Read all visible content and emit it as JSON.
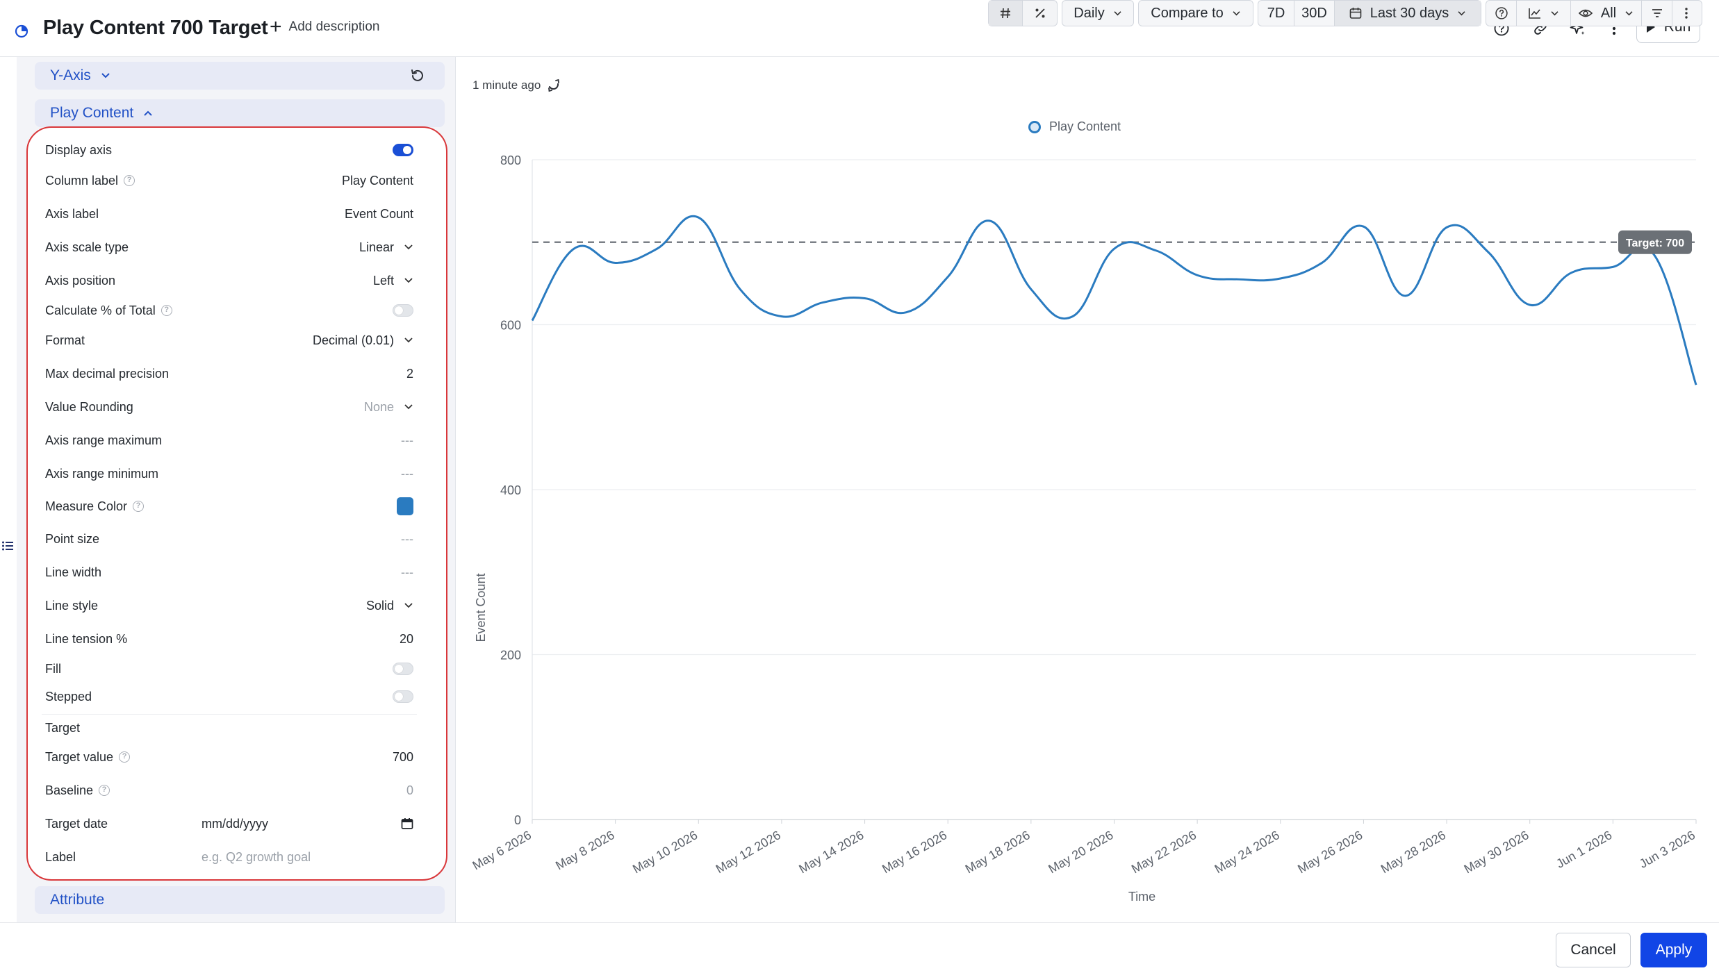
{
  "header": {
    "title": "Play Content 700 Target",
    "add_description": "Add description",
    "run_label": "Run",
    "icons": [
      "help-icon",
      "link-icon",
      "sparkle-icon",
      "more-vertical-icon"
    ]
  },
  "left_panel": {
    "sections": {
      "y_axis": "Y-Axis",
      "play_content": "Play Content",
      "attribute": "Attribute"
    },
    "fields": {
      "display_axis": {
        "label": "Display axis",
        "on": true
      },
      "column_label": {
        "label": "Column label",
        "value": "Play Content"
      },
      "axis_label": {
        "label": "Axis label",
        "value": "Event Count"
      },
      "axis_scale_type": {
        "label": "Axis scale type",
        "value": "Linear"
      },
      "axis_position": {
        "label": "Axis position",
        "value": "Left"
      },
      "calc_pct_total": {
        "label": "Calculate % of Total",
        "on": false
      },
      "format": {
        "label": "Format",
        "value": "Decimal (0.01)"
      },
      "max_decimal_precision": {
        "label": "Max decimal precision",
        "value": "2"
      },
      "value_rounding": {
        "label": "Value Rounding",
        "placeholder": "None"
      },
      "axis_range_max": {
        "label": "Axis range maximum",
        "placeholder": "---"
      },
      "axis_range_min": {
        "label": "Axis range minimum",
        "placeholder": "---"
      },
      "measure_color": {
        "label": "Measure Color",
        "color": "#2a7bc0"
      },
      "point_size": {
        "label": "Point size",
        "placeholder": "---"
      },
      "line_width": {
        "label": "Line width",
        "placeholder": "---"
      },
      "line_style": {
        "label": "Line style",
        "value": "Solid"
      },
      "line_tension": {
        "label": "Line tension %",
        "value": "20"
      },
      "fill": {
        "label": "Fill",
        "on": false
      },
      "stepped": {
        "label": "Stepped",
        "on": false
      },
      "target_heading": "Target",
      "target_value": {
        "label": "Target value",
        "value": "700"
      },
      "baseline": {
        "label": "Baseline",
        "placeholder": "0"
      },
      "target_date": {
        "label": "Target date",
        "placeholder": "mm/dd/yyyy"
      },
      "label": {
        "label": "Label",
        "placeholder": "e.g. Q2 growth goal"
      }
    }
  },
  "toolbar": {
    "updated": "1 minute ago",
    "granularity": "Daily",
    "compare": "Compare to",
    "range_7d": "7D",
    "range_30d": "30D",
    "date_range": "Last 30 days",
    "visibility": "All"
  },
  "footer": {
    "cancel": "Cancel",
    "apply": "Apply"
  },
  "chart_data": {
    "type": "line",
    "xlabel": "Time",
    "ylabel": "Event Count",
    "ylim": [
      0,
      800
    ],
    "yticks": [
      0,
      200,
      400,
      600,
      800
    ],
    "xtick_labels": [
      "May 6 2026",
      "May 8 2026",
      "May 10 2026",
      "May 12 2026",
      "May 14 2026",
      "May 16 2026",
      "May 18 2026",
      "May 20 2026",
      "May 22 2026",
      "May 24 2026",
      "May 26 2026",
      "May 28 2026",
      "May 30 2026",
      "Jun 1 2026",
      "Jun 3 2026"
    ],
    "grid": true,
    "legend_position": "top-center",
    "target": {
      "value": 700,
      "label": "Target: 700"
    },
    "series": [
      {
        "name": "Play Content",
        "color": "#2a7bc0",
        "x": [
          "May 6 2026",
          "May 7 2026",
          "May 8 2026",
          "May 9 2026",
          "May 10 2026",
          "May 11 2026",
          "May 12 2026",
          "May 13 2026",
          "May 14 2026",
          "May 15 2026",
          "May 16 2026",
          "May 17 2026",
          "May 18 2026",
          "May 19 2026",
          "May 20 2026",
          "May 21 2026",
          "May 22 2026",
          "May 23 2026",
          "May 24 2026",
          "May 25 2026",
          "May 26 2026",
          "May 27 2026",
          "May 28 2026",
          "May 29 2026",
          "May 30 2026",
          "May 31 2026",
          "Jun 1 2026",
          "Jun 2 2026",
          "Jun 3 2026"
        ],
        "values": [
          605,
          692,
          675,
          692,
          730,
          643,
          610,
          627,
          632,
          615,
          658,
          726,
          643,
          610,
          692,
          690,
          660,
          655,
          656,
          675,
          719,
          635,
          718,
          688,
          624,
          663,
          670,
          684,
          527
        ]
      }
    ]
  }
}
